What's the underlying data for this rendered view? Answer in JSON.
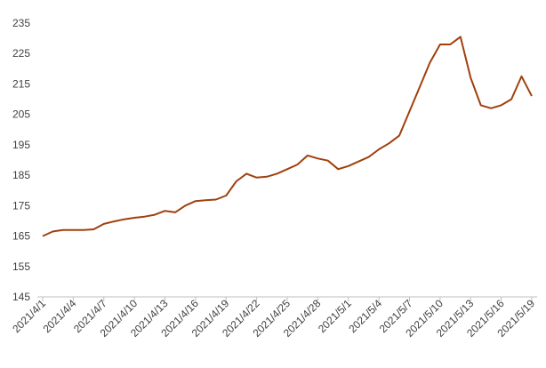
{
  "chart_data": {
    "type": "line",
    "categories": [
      "2021/4/1",
      null,
      null,
      "2021/4/4",
      null,
      null,
      "2021/4/7",
      null,
      null,
      "2021/4/10",
      null,
      null,
      "2021/4/13",
      null,
      null,
      "2021/4/16",
      null,
      null,
      "2021/4/19",
      null,
      null,
      "2021/4/22",
      null,
      null,
      "2021/4/25",
      null,
      null,
      "2021/4/28",
      null,
      null,
      "2021/5/1",
      null,
      null,
      "2021/5/4",
      null,
      null,
      "2021/5/7",
      null,
      null,
      "2021/5/10",
      null,
      null,
      "2021/5/13",
      null,
      null,
      "2021/5/16",
      null,
      null,
      "2021/5/19"
    ],
    "values": [
      165,
      166.5,
      167,
      167,
      167,
      167.2,
      169,
      169.8,
      170.5,
      171,
      171.4,
      172,
      173.3,
      172.8,
      175,
      176.5,
      176.8,
      177,
      178.3,
      183,
      185.5,
      184.2,
      184.5,
      185.5,
      187,
      188.5,
      191.5,
      190.5,
      189.8,
      187,
      188,
      189.5,
      191,
      193.5,
      195.5,
      198,
      206,
      214,
      222,
      228,
      228,
      230.5,
      217,
      208,
      207,
      208,
      210,
      217.5,
      211
    ],
    "color": "#a0400c",
    "ylim": [
      145,
      235
    ],
    "yticks": [
      145,
      155,
      165,
      175,
      185,
      195,
      205,
      215,
      225,
      235
    ],
    "grid": false
  }
}
